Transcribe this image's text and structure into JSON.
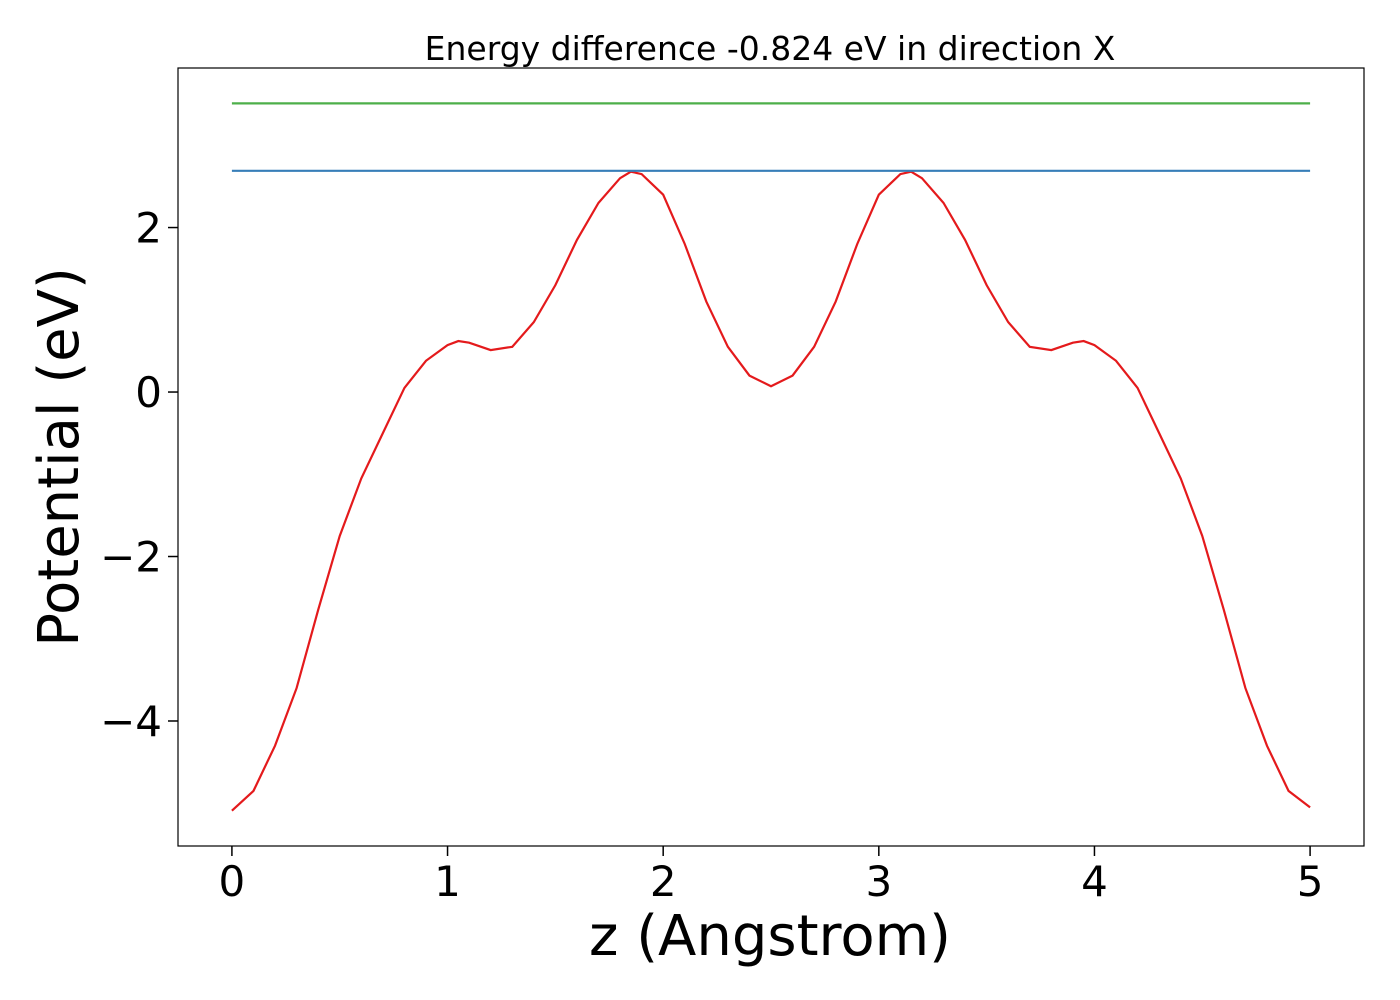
{
  "chart_data": {
    "type": "line",
    "title": "Energy difference -0.824 eV in direction X",
    "x_label": "z (Angstrom)",
    "y_label": "Potential (eV)",
    "series": [
      {
        "color": "#e41a1c",
        "x": [
          0,
          0.1,
          0.2,
          0.3,
          0.4,
          0.5,
          0.6,
          0.7,
          0.8,
          0.9,
          1.0,
          1.05,
          1.1,
          1.2,
          1.3,
          1.4,
          1.5,
          1.6,
          1.7,
          1.8,
          1.85,
          1.9,
          2.0,
          2.1,
          2.2,
          2.3,
          2.4,
          2.5,
          2.6,
          2.7,
          2.8,
          2.9,
          3.0,
          3.1,
          3.15,
          3.2,
          3.3,
          3.4,
          3.5,
          3.6,
          3.7,
          3.8,
          3.9,
          3.95,
          4.0,
          4.1,
          4.2,
          4.3,
          4.4,
          4.5,
          4.6,
          4.7,
          4.8,
          4.9,
          5.0
        ],
        "values": [
          -5.09,
          -4.85,
          -4.3,
          -3.6,
          -2.65,
          -1.75,
          -1.05,
          -0.5,
          0.05,
          0.38,
          0.57,
          0.62,
          0.6,
          0.51,
          0.55,
          0.85,
          1.3,
          1.85,
          2.3,
          2.6,
          2.68,
          2.65,
          2.4,
          1.8,
          1.1,
          0.55,
          0.2,
          0.07,
          0.2,
          0.55,
          1.1,
          1.8,
          2.4,
          2.65,
          2.68,
          2.6,
          2.3,
          1.85,
          1.3,
          0.85,
          0.55,
          0.51,
          0.6,
          0.62,
          0.57,
          0.38,
          0.05,
          -0.5,
          -1.05,
          -1.75,
          -2.65,
          -3.6,
          -4.3,
          -4.85,
          -5.05
        ]
      },
      {
        "color": "#377eb8",
        "x": [
          0,
          5
        ],
        "values": [
          2.69,
          2.69
        ]
      },
      {
        "color": "#4daf4a",
        "x": [
          0,
          5
        ],
        "values": [
          3.51,
          3.51
        ]
      }
    ],
    "xlim": [
      -0.25,
      5.25
    ],
    "ylim": [
      -5.52,
      3.94
    ],
    "xticks": [
      0,
      1,
      2,
      3,
      4,
      5
    ],
    "yticks": [
      {
        "value": -4,
        "label": "−4"
      },
      {
        "value": -2,
        "label": "−2"
      },
      0,
      2
    ]
  }
}
